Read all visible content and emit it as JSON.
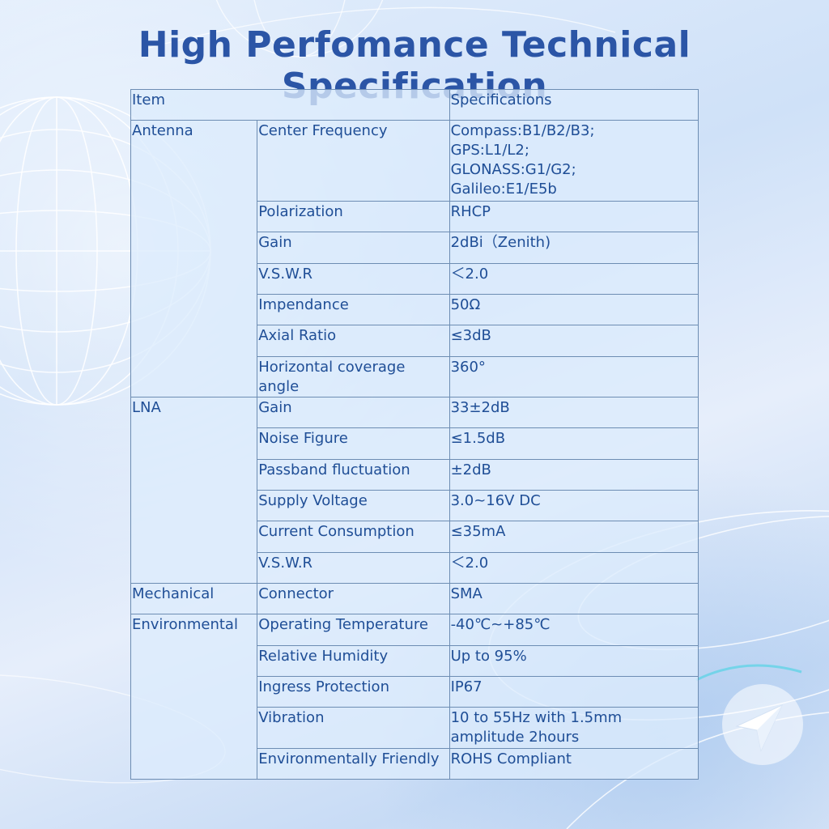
{
  "page": {
    "title": "High Perfomance Technical Specification"
  },
  "table": {
    "header": {
      "item": "Item",
      "specifications": "Specifications"
    },
    "groups": [
      {
        "name": "Antenna",
        "rows": [
          {
            "param": "Center Frequency",
            "value": "Compass:B1/B2/B3;\nGPS:L1/L2;\nGLONASS:G1/G2;\nGalileo:E1/E5b"
          },
          {
            "param": "Polarization",
            "value": "RHCP"
          },
          {
            "param": "Gain",
            "value": "2dBi（Zenith)"
          },
          {
            "param": "V.S.W.R",
            "value": "＜2.0"
          },
          {
            "param": "Impendance",
            "value": "50Ω"
          },
          {
            "param": "Axial Ratio",
            "value": "≤3dB"
          },
          {
            "param": "Horizontal coverage angle",
            "value": "360°"
          }
        ]
      },
      {
        "name": "LNA",
        "rows": [
          {
            "param": "Gain",
            "value": "33±2dB"
          },
          {
            "param": "Noise Figure",
            "value": "≤1.5dB"
          },
          {
            "param": "Passband fluctuation",
            "value": " ±2dB"
          },
          {
            "param": "Supply Voltage",
            "value": "3.0~16V DC"
          },
          {
            "param": "Current Consumption",
            "value": "≤35mA"
          },
          {
            "param": "V.S.W.R",
            "value": "＜2.0"
          }
        ]
      },
      {
        "name": "Mechanical",
        "rows": [
          {
            "param": "Connector",
            "value": "SMA"
          }
        ]
      },
      {
        "name": "Environmental",
        "rows": [
          {
            "param": "Operating Temperature",
            "value": "-40℃~+85℃"
          },
          {
            "param": "Relative Humidity",
            "value": "Up to 95%"
          },
          {
            "param": "Ingress Protection",
            "value": "IP67"
          },
          {
            "param": "Vibration",
            "value": "10 to 55Hz with 1.5mm amplitude 2hours"
          },
          {
            "param": "Environmentally Friendly",
            "value": "ROHS Compliant"
          }
        ]
      }
    ]
  },
  "icons": {
    "globe": "globe-wireframe-icon",
    "navigation": "navigation-arrow-icon"
  },
  "colors": {
    "title": "#2b55a6",
    "text": "#1f4e96",
    "border": "#6d8db3"
  }
}
